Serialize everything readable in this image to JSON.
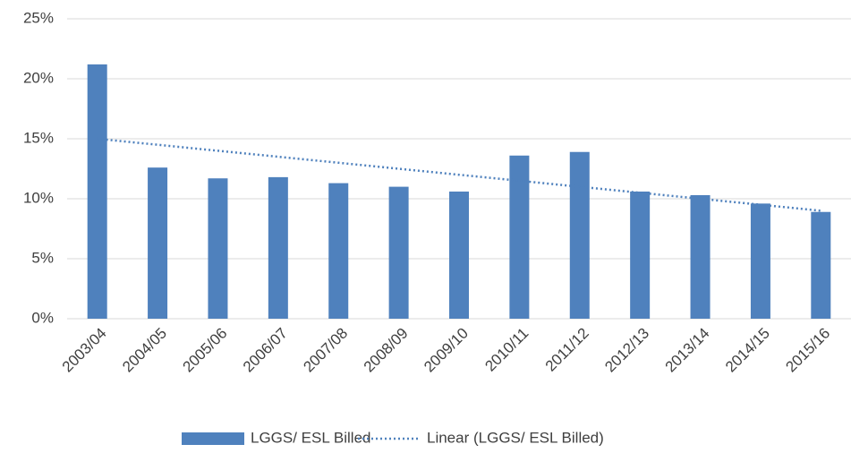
{
  "chart_data": {
    "type": "bar",
    "categories": [
      "2003/04",
      "2004/05",
      "2005/06",
      "2006/07",
      "2007/08",
      "2008/09",
      "2009/10",
      "2010/11",
      "2011/12",
      "2012/13",
      "2013/14",
      "2014/15",
      "2015/16"
    ],
    "series": [
      {
        "name": "LGGS/ ESL Billed",
        "color": "#4f81bd",
        "values": [
          21.2,
          12.6,
          11.7,
          11.8,
          11.3,
          11.0,
          10.6,
          13.6,
          13.9,
          10.6,
          10.3,
          9.6,
          8.9
        ]
      },
      {
        "name": "Linear (LGGS/ ESL Billed)",
        "color": "#4f81bd",
        "kind": "trendline",
        "values": [
          15.0,
          14.5,
          14.0,
          13.5,
          13.0,
          12.5,
          12.0,
          11.5,
          11.0,
          10.5,
          10.0,
          9.5,
          9.0
        ]
      }
    ],
    "ylim": [
      0,
      25
    ],
    "yticks": [
      {
        "value": 0,
        "label": "0%"
      },
      {
        "value": 5,
        "label": "5%"
      },
      {
        "value": 10,
        "label": "10%"
      },
      {
        "value": 15,
        "label": "15%"
      },
      {
        "value": 20,
        "label": "20%"
      },
      {
        "value": 25,
        "label": "25%"
      }
    ],
    "grid": true,
    "legend": "bottom"
  }
}
